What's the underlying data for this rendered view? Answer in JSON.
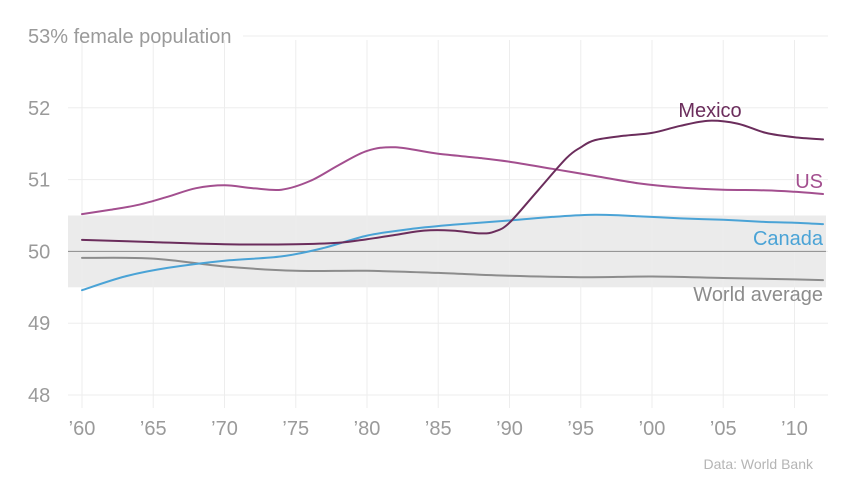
{
  "chart_data": {
    "type": "line",
    "title": "",
    "source": "Data: World Bank",
    "ylim": [
      48,
      53
    ],
    "xlim": [
      1960,
      2012
    ],
    "y_ticks": [
      {
        "value": 53,
        "label": "53% female population"
      },
      {
        "value": 52,
        "label": "52"
      },
      {
        "value": 51,
        "label": "51"
      },
      {
        "value": 50,
        "label": "50"
      },
      {
        "value": 49,
        "label": "49"
      },
      {
        "value": 48,
        "label": "48"
      }
    ],
    "x_ticks": [
      {
        "value": 1960,
        "label": "’60"
      },
      {
        "value": 1965,
        "label": "’65"
      },
      {
        "value": 1970,
        "label": "’70"
      },
      {
        "value": 1975,
        "label": "’75"
      },
      {
        "value": 1980,
        "label": "’80"
      },
      {
        "value": 1985,
        "label": "’85"
      },
      {
        "value": 1990,
        "label": "’90"
      },
      {
        "value": 1995,
        "label": "’95"
      },
      {
        "value": 2000,
        "label": "’00"
      },
      {
        "value": 2005,
        "label": "’05"
      },
      {
        "value": 2010,
        "label": "’10"
      }
    ],
    "band": [
      49.5,
      50.5
    ],
    "reference_line": 50,
    "grid": true,
    "series": [
      {
        "name": "Mexico",
        "color": "#6b2d5c",
        "x": [
          1960,
          1965,
          1970,
          1975,
          1978,
          1980,
          1982,
          1984,
          1986,
          1988,
          1989,
          1990,
          1992,
          1994,
          1995,
          1996,
          1998,
          2000,
          2002,
          2004,
          2006,
          2008,
          2010,
          2012
        ],
        "y": [
          50.16,
          50.13,
          50.1,
          50.1,
          50.12,
          50.17,
          50.23,
          50.29,
          50.29,
          50.25,
          50.28,
          50.4,
          50.85,
          51.3,
          51.45,
          51.55,
          51.61,
          51.65,
          51.75,
          51.82,
          51.78,
          51.65,
          51.59,
          51.56
        ]
      },
      {
        "name": "US",
        "color": "#a34f8f",
        "x": [
          1960,
          1962,
          1964,
          1966,
          1968,
          1970,
          1972,
          1974,
          1976,
          1978,
          1980,
          1982,
          1985,
          1988,
          1990,
          1993,
          1996,
          1999,
          2002,
          2005,
          2008,
          2010,
          2012
        ],
        "y": [
          50.52,
          50.58,
          50.65,
          50.76,
          50.88,
          50.92,
          50.88,
          50.86,
          50.98,
          51.2,
          51.4,
          51.45,
          51.36,
          51.3,
          51.25,
          51.15,
          51.05,
          50.95,
          50.89,
          50.86,
          50.85,
          50.83,
          50.8
        ]
      },
      {
        "name": "Canada",
        "color": "#4aa3d6",
        "x": [
          1960,
          1963,
          1966,
          1970,
          1974,
          1977,
          1980,
          1983,
          1986,
          1990,
          1993,
          1996,
          1999,
          2002,
          2005,
          2008,
          2010,
          2012
        ],
        "y": [
          49.46,
          49.65,
          49.77,
          49.87,
          49.93,
          50.05,
          50.22,
          50.31,
          50.37,
          50.43,
          50.48,
          50.51,
          50.49,
          50.46,
          50.44,
          50.41,
          50.4,
          50.38
        ]
      },
      {
        "name": "World average",
        "color": "#8c8c8c",
        "x": [
          1960,
          1965,
          1970,
          1975,
          1980,
          1985,
          1990,
          1995,
          2000,
          2005,
          2010,
          2012
        ],
        "y": [
          49.91,
          49.9,
          49.79,
          49.73,
          49.73,
          49.7,
          49.66,
          49.64,
          49.65,
          49.63,
          49.61,
          49.6
        ]
      }
    ]
  }
}
